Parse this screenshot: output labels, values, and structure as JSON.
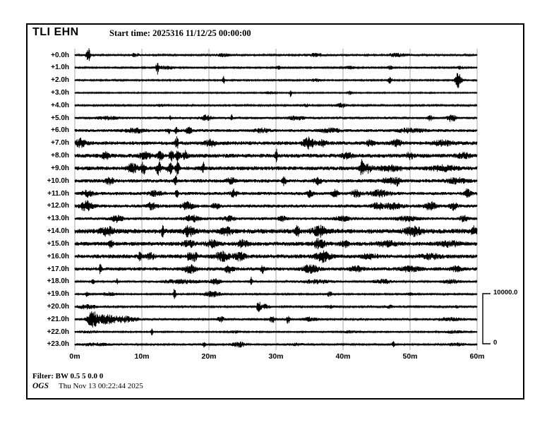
{
  "header": {
    "station": "TLI EHN",
    "start_time_label": "Start time: 2025316 11/12/25 00:00:00"
  },
  "footer": {
    "filter": "Filter: BW 0.5 5 0.0 0",
    "agency": "OGS",
    "timestamp": "Thu Nov 13 00:22:44 2025"
  },
  "scale_bar": {
    "max": "10000.0",
    "min": "0"
  },
  "colors": {
    "trace": "#000000",
    "grid": "#a8a8a8",
    "background": "#ffffff",
    "border": "#000000"
  },
  "chart_data": {
    "type": "line",
    "subtype": "helicorder-seismogram",
    "title": "TLI EHN",
    "start_time": "2025316 11/12/25 00:00:00",
    "x_ticks": [
      "0m",
      "10m",
      "20m",
      "30m",
      "40m",
      "50m",
      "60m"
    ],
    "x_minutes_range": [
      0,
      60
    ],
    "rows_are_hours_after_start": true,
    "amplitude_scale": {
      "label_top": "10000.0",
      "label_bottom": "0"
    },
    "legend_position": "right",
    "grid": "vertical-only",
    "rows": [
      {
        "label": "+0.0h",
        "noise": 1.3,
        "events": [
          [
            2.0,
            13,
            0.25
          ],
          [
            9,
            2,
            0.8
          ],
          [
            22,
            2,
            1.0
          ],
          [
            36,
            2,
            1.2
          ],
          [
            48,
            2,
            1.5
          ]
        ]
      },
      {
        "label": "+1.0h",
        "noise": 1.0,
        "events": [
          [
            12.3,
            9,
            0.18
          ],
          [
            13.6,
            2.5,
            1.2
          ],
          [
            30.5,
            2,
            0.6
          ],
          [
            41,
            2,
            0.8
          ],
          [
            47,
            2.5,
            0.5
          ],
          [
            57.5,
            2,
            0.5
          ]
        ]
      },
      {
        "label": "+2.0h",
        "noise": 1.0,
        "events": [
          [
            22.2,
            8,
            0.18
          ],
          [
            36,
            2,
            0.8
          ],
          [
            47,
            4.5,
            0.3
          ],
          [
            57.2,
            11,
            0.45
          ]
        ]
      },
      {
        "label": "+3.0h",
        "noise": 0.85,
        "events": [
          [
            29,
            1.5,
            0.8
          ],
          [
            32.2,
            6,
            0.15
          ],
          [
            41,
            2.5,
            0.35
          ]
        ]
      },
      {
        "label": "+4.0h",
        "noise": 1.1,
        "events": [
          [
            13,
            1.5,
            1
          ],
          [
            34.5,
            2,
            0.6
          ],
          [
            39.8,
            3,
            0.7
          ]
        ]
      },
      {
        "label": "+5.0h",
        "noise": 1.5,
        "events": [
          [
            5,
            2,
            1.5
          ],
          [
            14.3,
            4,
            0.15
          ],
          [
            19.6,
            3.5,
            0.8
          ],
          [
            23.4,
            4,
            0.15
          ],
          [
            33,
            2.5,
            1.2
          ],
          [
            53,
            4,
            0.3
          ],
          [
            56.2,
            5,
            0.6
          ]
        ]
      },
      {
        "label": "+6.0h",
        "noise": 2.0,
        "events": [
          [
            9,
            3,
            1.5
          ],
          [
            14,
            4,
            0.3
          ],
          [
            15.2,
            7,
            0.18
          ],
          [
            17,
            3.5,
            0.5
          ],
          [
            28,
            2.5,
            1
          ],
          [
            38,
            2.5,
            1.5
          ],
          [
            50,
            2.5,
            2
          ]
        ]
      },
      {
        "label": "+7.0h",
        "noise": 2.6,
        "events": [
          [
            0.9,
            5.5,
            0.7
          ],
          [
            15.2,
            9,
            0.22
          ],
          [
            20.3,
            4,
            0.8
          ],
          [
            34.9,
            7.5,
            0.8
          ],
          [
            37,
            4,
            0.5
          ],
          [
            44,
            3.5,
            0.5
          ],
          [
            48,
            4,
            0.7
          ],
          [
            55,
            3,
            1.5
          ]
        ]
      },
      {
        "label": "+8.0h",
        "noise": 2.8,
        "events": [
          [
            4.6,
            4,
            0.6
          ],
          [
            10.5,
            5,
            0.8
          ],
          [
            12.8,
            6,
            0.4
          ],
          [
            14.4,
            7,
            0.3
          ],
          [
            15.4,
            8,
            0.28
          ],
          [
            16.4,
            6,
            0.4
          ],
          [
            30.1,
            8,
            0.18
          ],
          [
            40.6,
            4,
            0.7
          ],
          [
            50,
            4,
            0.5
          ],
          [
            58,
            3,
            1
          ]
        ]
      },
      {
        "label": "+9.0h",
        "noise": 2.8,
        "events": [
          [
            8.6,
            6,
            0.7
          ],
          [
            10.2,
            8,
            0.35
          ],
          [
            12.5,
            9,
            0.35
          ],
          [
            14.2,
            8,
            0.35
          ],
          [
            15.3,
            9,
            0.28
          ],
          [
            19.1,
            8,
            0.22
          ],
          [
            42.8,
            9,
            0.28
          ],
          [
            43.6,
            5,
            0.7
          ],
          [
            47,
            3,
            1.8
          ],
          [
            55,
            3,
            1.8
          ]
        ]
      },
      {
        "label": "+10.0h",
        "noise": 2.5,
        "events": [
          [
            5.2,
            4,
            0.6
          ],
          [
            15.0,
            8,
            0.2
          ],
          [
            23.3,
            4,
            0.6
          ],
          [
            31.2,
            8,
            0.22
          ],
          [
            36.2,
            4,
            0.6
          ],
          [
            46.8,
            4,
            1
          ],
          [
            48.1,
            5,
            0.35
          ],
          [
            57,
            3.5,
            1.3
          ]
        ]
      },
      {
        "label": "+11.0h",
        "noise": 2.3,
        "events": [
          [
            2,
            4,
            0.8
          ],
          [
            12,
            3,
            1
          ],
          [
            15.2,
            6,
            0.2
          ],
          [
            23.7,
            5,
            0.45
          ],
          [
            35,
            4,
            0.5
          ],
          [
            38.8,
            5,
            0.4
          ],
          [
            42,
            5,
            0.6
          ],
          [
            45.5,
            4,
            1.4
          ],
          [
            58.5,
            5,
            0.5
          ]
        ]
      },
      {
        "label": "+12.0h",
        "noise": 2.3,
        "events": [
          [
            1.8,
            7,
            0.9
          ],
          [
            11.5,
            4,
            0.8
          ],
          [
            16.8,
            5,
            0.8
          ],
          [
            21,
            4,
            0.5
          ],
          [
            45.2,
            4,
            0.8
          ],
          [
            47.5,
            4,
            1.2
          ],
          [
            53,
            5,
            0.8
          ],
          [
            56.5,
            5,
            0.5
          ]
        ]
      },
      {
        "label": "+13.0h",
        "noise": 2.1,
        "events": [
          [
            6.3,
            4,
            0.8
          ],
          [
            17.5,
            4,
            1
          ],
          [
            23,
            3,
            0.8
          ],
          [
            31,
            3,
            0.5
          ],
          [
            40,
            3,
            1
          ],
          [
            49.5,
            3,
            1.4
          ],
          [
            58,
            4,
            0.5
          ]
        ]
      },
      {
        "label": "+14.0h",
        "noise": 3.3,
        "events": [
          [
            4.8,
            5,
            1
          ],
          [
            13.1,
            6,
            0.2
          ],
          [
            17.0,
            6,
            0.8
          ],
          [
            22.5,
            5,
            0.8
          ],
          [
            33.2,
            6,
            0.3
          ],
          [
            36.5,
            6,
            1.0
          ],
          [
            50.5,
            5,
            1.2
          ],
          [
            59.5,
            6,
            0.4
          ]
        ]
      },
      {
        "label": "+15.0h",
        "noise": 2.9,
        "events": [
          [
            5.4,
            5,
            0.25
          ],
          [
            17,
            4,
            0.8
          ],
          [
            20.5,
            4,
            0.8
          ],
          [
            25,
            4,
            0.8
          ],
          [
            36.5,
            7,
            0.8
          ],
          [
            40.2,
            4,
            0.6
          ],
          [
            46.5,
            3,
            1.4
          ],
          [
            56,
            3,
            1.4
          ]
        ]
      },
      {
        "label": "+16.0h",
        "noise": 2.8,
        "events": [
          [
            9.7,
            5,
            0.25
          ],
          [
            11.3,
            4,
            0.5
          ],
          [
            17.0,
            7,
            0.25
          ],
          [
            17.8,
            6,
            0.4
          ],
          [
            22,
            6,
            1.0
          ],
          [
            24.5,
            5,
            0.8
          ],
          [
            37.0,
            7,
            1.0
          ],
          [
            44,
            3,
            1
          ],
          [
            53,
            3,
            1.4
          ]
        ]
      },
      {
        "label": "+17.0h",
        "noise": 2.4,
        "events": [
          [
            3.8,
            6,
            0.15
          ],
          [
            17.2,
            5,
            0.8
          ],
          [
            23,
            5,
            0.6
          ],
          [
            28,
            5,
            0.25
          ],
          [
            35.2,
            6,
            1.0
          ],
          [
            42,
            3,
            1
          ],
          [
            50,
            3,
            1.4
          ],
          [
            57,
            3,
            0.8
          ]
        ]
      },
      {
        "label": "+18.0h",
        "noise": 1.4,
        "events": [
          [
            2.7,
            4,
            0.18
          ],
          [
            6.3,
            4,
            0.18
          ],
          [
            16,
            2.5,
            3.0
          ],
          [
            21,
            4,
            0.7
          ],
          [
            26.3,
            6,
            0.18
          ],
          [
            36,
            2.5,
            2.2
          ],
          [
            46,
            2.5,
            1.4
          ],
          [
            56,
            2.5,
            1.4
          ]
        ]
      },
      {
        "label": "+19.0h",
        "noise": 1.0,
        "events": [
          [
            1.8,
            4,
            0.3
          ],
          [
            5,
            2.5,
            1
          ],
          [
            14.9,
            9,
            0.18
          ],
          [
            20.5,
            4,
            1.3
          ],
          [
            38,
            3.5,
            0.45
          ],
          [
            50,
            1.5,
            1
          ]
        ]
      },
      {
        "label": "+20.0h",
        "noise": 1.2,
        "events": [
          [
            1.8,
            3,
            1.4
          ],
          [
            27.4,
            8,
            0.25
          ],
          [
            28.3,
            4,
            0.7
          ],
          [
            38,
            2,
            0.7
          ],
          [
            47,
            2,
            0.5
          ],
          [
            57,
            1.5,
            0.5
          ]
        ]
      },
      {
        "label": "+21.0h",
        "noise": 1.5,
        "events": [
          [
            2.6,
            11,
            0.7
          ],
          [
            4.5,
            6,
            1.4
          ],
          [
            7.5,
            4,
            1.8
          ],
          [
            21.8,
            4,
            0.45
          ],
          [
            29.5,
            4,
            0.45
          ],
          [
            31.8,
            6,
            0.22
          ],
          [
            35,
            2.5,
            1
          ],
          [
            56,
            2,
            1.8
          ]
        ]
      },
      {
        "label": "+22.0h",
        "noise": 0.9,
        "events": [
          [
            2,
            1.5,
            2
          ],
          [
            11.5,
            5,
            0.15
          ],
          [
            24,
            1.5,
            1
          ],
          [
            41,
            1.5,
            1.4
          ],
          [
            56.5,
            1.8,
            1.8
          ]
        ]
      },
      {
        "label": "+23.0h",
        "noise": 1.1,
        "events": [
          [
            3,
            1.8,
            2.5
          ],
          [
            19.3,
            7,
            0.18
          ],
          [
            24.5,
            3.5,
            1.1
          ],
          [
            33,
            1.5,
            1.4
          ],
          [
            47.5,
            5,
            0.18
          ],
          [
            57,
            1.8,
            1.8
          ]
        ]
      }
    ],
    "events_format": "[minute_offset, amplitude_px, width_minutes]"
  }
}
